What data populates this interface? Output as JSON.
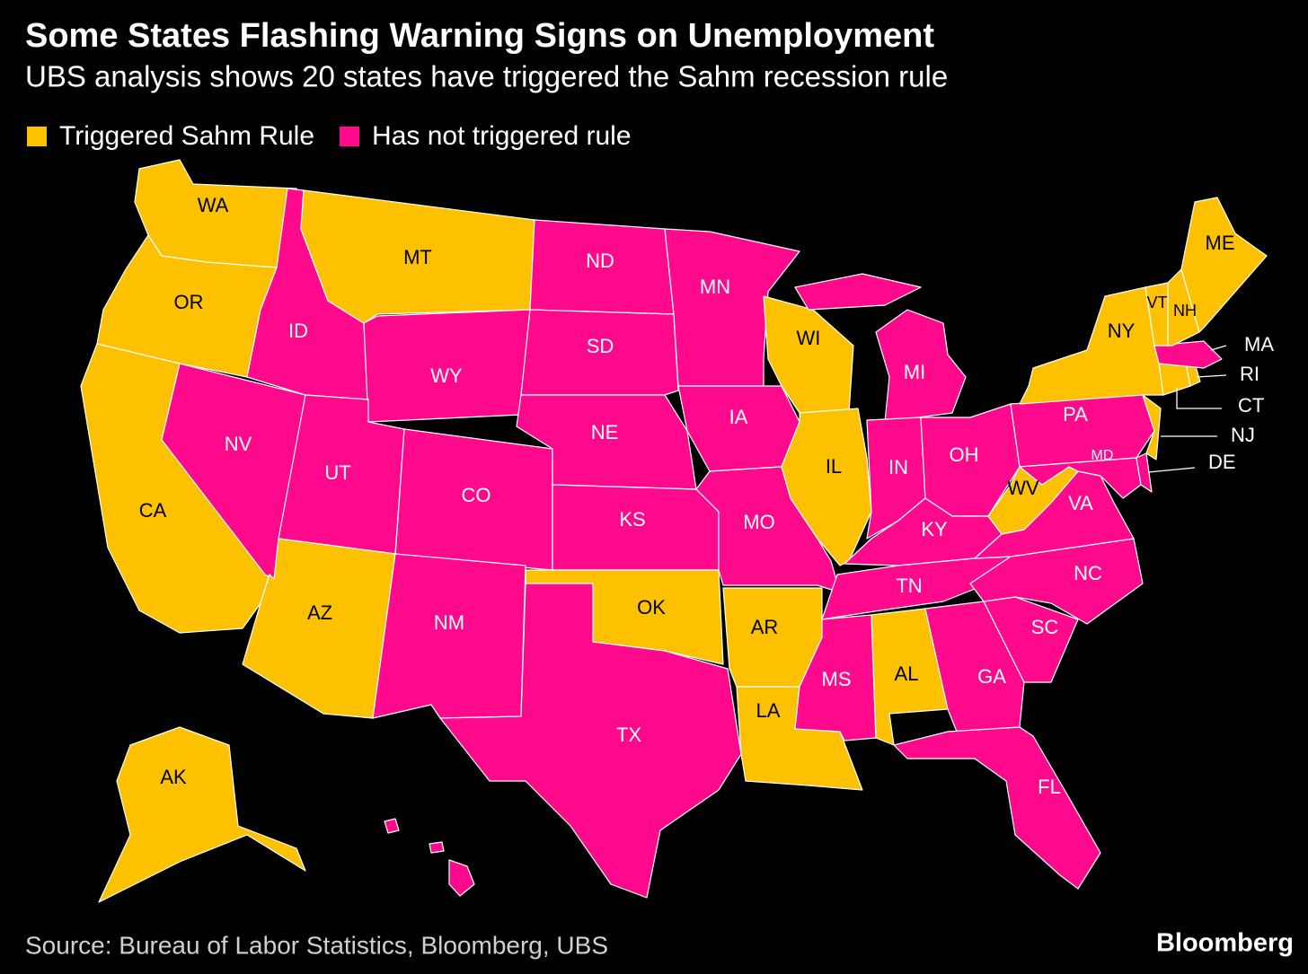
{
  "map": {
    "title": "Some States Flashing Warning Signs on Unemployment",
    "subtitle": "UBS analysis shows 20 states have triggered the Sahm recession rule",
    "legend": [
      {
        "label": "Triggered Sahm Rule",
        "color": "#fdc100",
        "label_color": "#000000"
      },
      {
        "label": "Has not triggered rule",
        "color": "#ff0a8c",
        "label_color": "#ffffff"
      }
    ],
    "states": [
      {
        "abbr": "WA",
        "group": 0
      },
      {
        "abbr": "OR",
        "group": 0
      },
      {
        "abbr": "CA",
        "group": 0
      },
      {
        "abbr": "NV",
        "group": 1
      },
      {
        "abbr": "ID",
        "group": 1
      },
      {
        "abbr": "MT",
        "group": 0
      },
      {
        "abbr": "WY",
        "group": 1
      },
      {
        "abbr": "UT",
        "group": 1
      },
      {
        "abbr": "CO",
        "group": 1
      },
      {
        "abbr": "AZ",
        "group": 0
      },
      {
        "abbr": "NM",
        "group": 1
      },
      {
        "abbr": "ND",
        "group": 1
      },
      {
        "abbr": "SD",
        "group": 1
      },
      {
        "abbr": "NE",
        "group": 1
      },
      {
        "abbr": "KS",
        "group": 1
      },
      {
        "abbr": "OK",
        "group": 0
      },
      {
        "abbr": "TX",
        "group": 1
      },
      {
        "abbr": "MN",
        "group": 1
      },
      {
        "abbr": "IA",
        "group": 1
      },
      {
        "abbr": "MO",
        "group": 1
      },
      {
        "abbr": "AR",
        "group": 0
      },
      {
        "abbr": "LA",
        "group": 0
      },
      {
        "abbr": "WI",
        "group": 0
      },
      {
        "abbr": "IL",
        "group": 0
      },
      {
        "abbr": "MI",
        "group": 1
      },
      {
        "abbr": "IN",
        "group": 1
      },
      {
        "abbr": "OH",
        "group": 1
      },
      {
        "abbr": "KY",
        "group": 1
      },
      {
        "abbr": "TN",
        "group": 1
      },
      {
        "abbr": "MS",
        "group": 1
      },
      {
        "abbr": "AL",
        "group": 0
      },
      {
        "abbr": "GA",
        "group": 1
      },
      {
        "abbr": "FL",
        "group": 1
      },
      {
        "abbr": "SC",
        "group": 1
      },
      {
        "abbr": "NC",
        "group": 1
      },
      {
        "abbr": "VA",
        "group": 1
      },
      {
        "abbr": "WV",
        "group": 0
      },
      {
        "abbr": "PA",
        "group": 1
      },
      {
        "abbr": "MD",
        "group": 1
      },
      {
        "abbr": "DE",
        "group": 1
      },
      {
        "abbr": "NJ",
        "group": 0
      },
      {
        "abbr": "NY",
        "group": 0
      },
      {
        "abbr": "CT",
        "group": 0
      },
      {
        "abbr": "RI",
        "group": 0
      },
      {
        "abbr": "MA",
        "group": 1
      },
      {
        "abbr": "VT",
        "group": 0
      },
      {
        "abbr": "NH",
        "group": 0
      },
      {
        "abbr": "ME",
        "group": 0
      },
      {
        "abbr": "AK",
        "group": 0
      },
      {
        "abbr": null,
        "group": 1
      }
    ],
    "source": "Source: Bureau of Labor Statistics, Bloomberg, UBS",
    "brand": "Bloomberg"
  }
}
